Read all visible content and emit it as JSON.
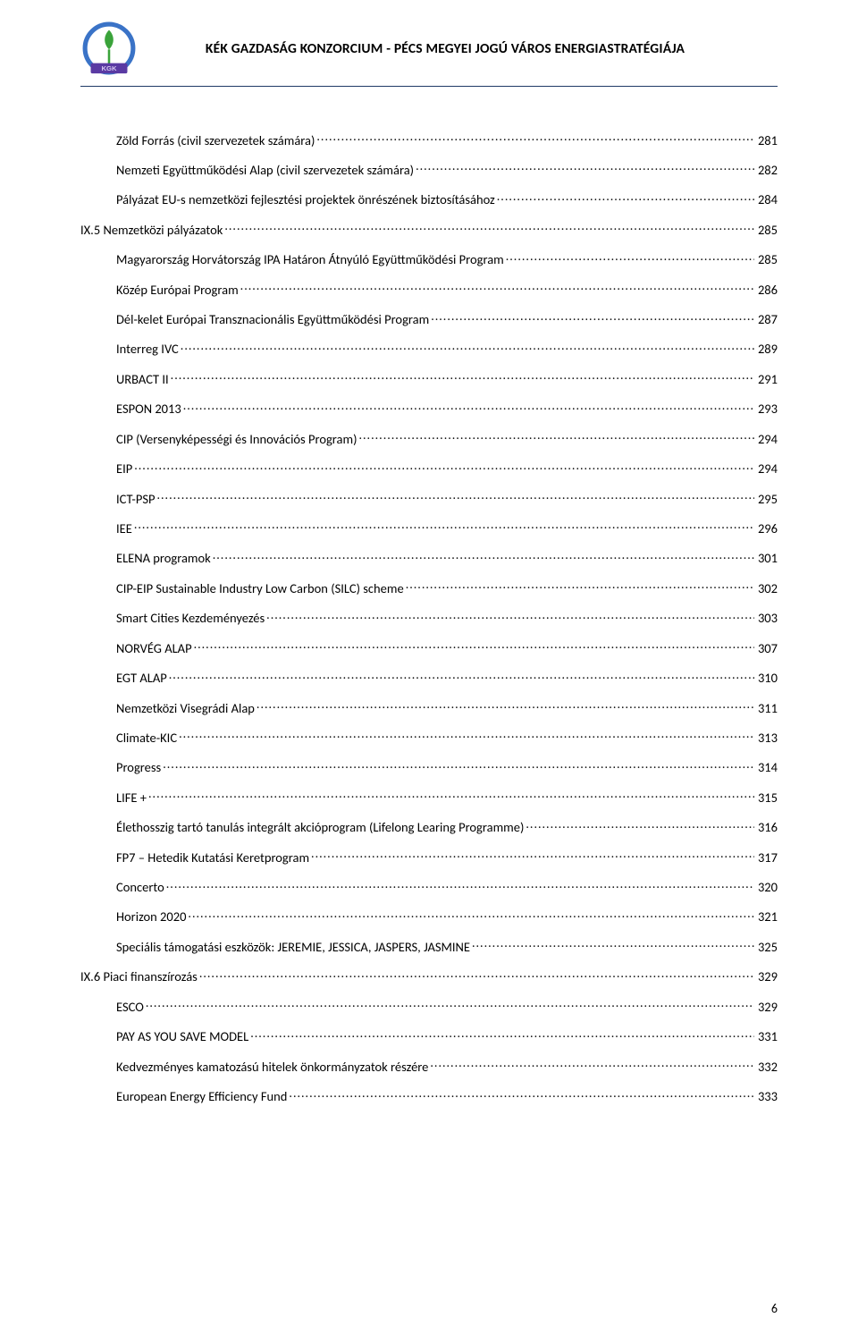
{
  "colors": {
    "text": "#000000",
    "header_rule": "#1f3a66",
    "background": "#ffffff",
    "logo_leaf": "#3aa33a",
    "logo_ring": "#3a73c7",
    "logo_ribbon": "#5a3aa3"
  },
  "header": {
    "title": "KÉK GAZDASÁG KONZORCIUM  - PÉCS MEGYEI JOGÚ VÁROS ENERGIASTRATÉGIÁJA",
    "logo_text": "KGK"
  },
  "toc": {
    "items": [
      {
        "label": "Zöld Forrás (civil szervezetek számára)",
        "page": "281",
        "level": 2
      },
      {
        "label": "Nemzeti Együttműködési Alap (civil szervezetek számára)",
        "page": "282",
        "level": 2
      },
      {
        "label": "Pályázat EU-s nemzetközi fejlesztési projektek önrészének biztosításához",
        "page": "284",
        "level": 2
      },
      {
        "label": "IX.5 Nemzetközi pályázatok",
        "page": "285",
        "level": 1
      },
      {
        "label": "Magyarország Horvátország IPA Határon Átnyúló Együttműködési Program",
        "page": "285",
        "level": 2
      },
      {
        "label": "Közép Európai Program",
        "page": "286",
        "level": 2
      },
      {
        "label": "Dél-kelet Európai Transznacionális Együttműködési Program",
        "page": "287",
        "level": 2
      },
      {
        "label": "Interreg IVC",
        "page": "289",
        "level": 2
      },
      {
        "label": "URBACT II",
        "page": "291",
        "level": 2
      },
      {
        "label": "ESPON 2013",
        "page": "293",
        "level": 2
      },
      {
        "label": "CIP (Versenyképességi és Innovációs Program)",
        "page": "294",
        "level": 2
      },
      {
        "label": "EIP",
        "page": "294",
        "level": 2
      },
      {
        "label": "ICT-PSP",
        "page": "295",
        "level": 2
      },
      {
        "label": "IEE",
        "page": "296",
        "level": 2
      },
      {
        "label": "ELENA programok",
        "page": "301",
        "level": 2
      },
      {
        "label": "CIP-EIP Sustainable Industry Low Carbon (SILC) scheme",
        "page": "302",
        "level": 2
      },
      {
        "label": "Smart Cities Kezdeményezés",
        "page": "303",
        "level": 2
      },
      {
        "label": "NORVÉG ALAP",
        "page": "307",
        "level": 2
      },
      {
        "label": "EGT ALAP",
        "page": "310",
        "level": 2
      },
      {
        "label": "Nemzetközi Visegrádi Alap",
        "page": "311",
        "level": 2
      },
      {
        "label": "Climate-KIC",
        "page": "313",
        "level": 2
      },
      {
        "label": "Progress",
        "page": "314",
        "level": 2
      },
      {
        "label": "LIFE +",
        "page": "315",
        "level": 2
      },
      {
        "label": "Élethosszig tartó tanulás integrált akcióprogram (Lifelong Learing Programme)",
        "page": "316",
        "level": 2
      },
      {
        "label": "FP7 – Hetedik Kutatási Keretprogram",
        "page": "317",
        "level": 2
      },
      {
        "label": "Concerto",
        "page": "320",
        "level": 2
      },
      {
        "label": "Horizon 2020",
        "page": "321",
        "level": 2
      },
      {
        "label": "Speciális támogatási eszközök: JEREMIE, JESSICA, JASPERS, JASMINE",
        "page": "325",
        "level": 2
      },
      {
        "label": "IX.6 Piaci finanszírozás",
        "page": "329",
        "level": 1
      },
      {
        "label": "ESCO",
        "page": "329",
        "level": 2
      },
      {
        "label": "PAY AS YOU SAVE MODEL",
        "page": "331",
        "level": 2
      },
      {
        "label": "Kedvezményes kamatozású hitelek önkormányzatok részére",
        "page": "332",
        "level": 2
      },
      {
        "label": "European Energy Efficiency Fund",
        "page": "333",
        "level": 2
      }
    ]
  },
  "page_number": "6"
}
